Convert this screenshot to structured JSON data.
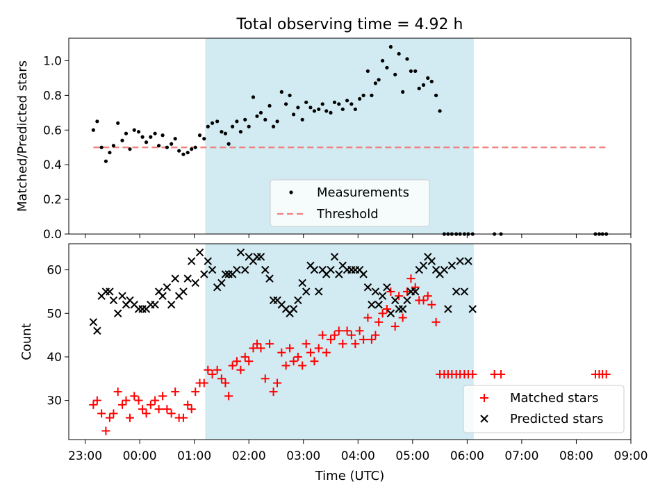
{
  "title": "Total observing time = 4.92 h",
  "colors": {
    "shade": "#add8e6",
    "threshold": "#f08080",
    "matched": "#ff0000",
    "predicted": "#000000",
    "measure": "#000000"
  },
  "chart_data": [
    {
      "type": "scatter",
      "ylabel": "Matched/Predicted stars",
      "xlim": [
        22.7,
        33.0
      ],
      "ylim": [
        0.0,
        1.13
      ],
      "yticks": [
        "0.0",
        "0.2",
        "0.4",
        "0.6",
        "0.8",
        "1.0"
      ],
      "ytick_values": [
        0.0,
        0.2,
        0.4,
        0.6,
        0.8,
        1.0
      ],
      "shaded_x_range": [
        25.2,
        30.12
      ],
      "legend": {
        "placement": "lower center",
        "entries": [
          "Measurements",
          "Threshold"
        ]
      },
      "series": [
        {
          "name": "Measurements",
          "marker": "dot",
          "x": [
            23.15,
            23.22,
            23.3,
            23.38,
            23.45,
            23.52,
            23.6,
            23.68,
            23.75,
            23.82,
            23.9,
            23.98,
            24.05,
            24.12,
            24.2,
            24.28,
            24.35,
            24.42,
            24.5,
            24.58,
            24.65,
            24.72,
            24.8,
            24.88,
            24.95,
            25.02,
            25.1,
            25.18,
            25.25,
            25.33,
            25.42,
            25.5,
            25.57,
            25.63,
            25.7,
            25.78,
            25.85,
            25.93,
            26.0,
            26.08,
            26.15,
            26.22,
            26.3,
            26.38,
            26.45,
            26.52,
            26.6,
            26.68,
            26.75,
            26.82,
            26.9,
            26.98,
            27.05,
            27.13,
            27.2,
            27.28,
            27.35,
            27.42,
            27.5,
            27.57,
            27.65,
            27.72,
            27.8,
            27.88,
            27.95,
            28.03,
            28.1,
            28.18,
            28.25,
            28.32,
            28.38,
            28.45,
            28.53,
            28.6,
            28.68,
            28.75,
            28.82,
            28.9,
            28.97,
            29.05,
            29.12,
            29.2,
            29.28,
            29.35,
            29.43,
            29.5,
            29.58,
            29.65,
            29.72,
            29.8,
            29.87,
            29.95,
            30.02,
            30.1,
            30.5,
            30.62,
            32.35,
            32.42,
            32.48,
            32.55
          ],
          "y": [
            0.6,
            0.65,
            0.5,
            0.42,
            0.47,
            0.51,
            0.64,
            0.54,
            0.58,
            0.49,
            0.6,
            0.59,
            0.56,
            0.53,
            0.56,
            0.58,
            0.51,
            0.57,
            0.5,
            0.52,
            0.55,
            0.48,
            0.46,
            0.47,
            0.49,
            0.5,
            0.57,
            0.55,
            0.62,
            0.64,
            0.65,
            0.59,
            0.58,
            0.52,
            0.62,
            0.65,
            0.59,
            0.66,
            0.62,
            0.79,
            0.68,
            0.7,
            0.66,
            0.74,
            0.62,
            0.65,
            0.82,
            0.75,
            0.8,
            0.69,
            0.73,
            0.66,
            0.76,
            0.73,
            0.71,
            0.72,
            0.75,
            0.71,
            0.7,
            0.76,
            0.75,
            0.72,
            0.77,
            0.75,
            0.72,
            0.78,
            0.8,
            0.94,
            0.8,
            0.87,
            0.89,
            1.0,
            0.96,
            1.08,
            0.92,
            1.04,
            0.82,
            1.01,
            0.94,
            0.94,
            0.84,
            0.86,
            0.9,
            0.88,
            0.8,
            0.71,
            0.0,
            0.0,
            0.0,
            0.0,
            0.0,
            0.0,
            0.0,
            0.0,
            0.0,
            0.0,
            0.0,
            0.0,
            0.0,
            0.0
          ]
        },
        {
          "name": "Threshold",
          "marker": "dashed-line",
          "x": [
            23.15,
            32.55
          ],
          "y": [
            0.5,
            0.5
          ]
        }
      ]
    },
    {
      "type": "scatter",
      "ylabel": "Count",
      "xlabel": "Time (UTC)",
      "xlim": [
        22.7,
        33.0
      ],
      "ylim": [
        21,
        66
      ],
      "yticks": [
        "30",
        "40",
        "50",
        "60"
      ],
      "ytick_values": [
        30,
        40,
        50,
        60
      ],
      "xticks": [
        "23:00",
        "00:00",
        "01:00",
        "02:00",
        "03:00",
        "04:00",
        "05:00",
        "06:00",
        "07:00",
        "08:00",
        "09:00"
      ],
      "xtick_values": [
        23,
        24,
        25,
        26,
        27,
        28,
        29,
        30,
        31,
        32,
        33
      ],
      "shaded_x_range": [
        25.2,
        30.12
      ],
      "legend": {
        "placement": "lower right",
        "entries": [
          "Matched stars",
          "Predicted stars"
        ]
      },
      "series": [
        {
          "name": "Matched stars",
          "marker": "plus",
          "x": [
            23.15,
            23.22,
            23.3,
            23.38,
            23.45,
            23.52,
            23.6,
            23.68,
            23.75,
            23.82,
            23.9,
            23.98,
            24.05,
            24.12,
            24.2,
            24.28,
            24.35,
            24.42,
            24.5,
            24.58,
            24.65,
            24.72,
            24.8,
            24.88,
            24.95,
            25.02,
            25.1,
            25.18,
            25.25,
            25.33,
            25.42,
            25.5,
            25.57,
            25.63,
            25.7,
            25.78,
            25.85,
            25.93,
            26.0,
            26.08,
            26.15,
            26.22,
            26.3,
            26.38,
            26.45,
            26.52,
            26.6,
            26.68,
            26.75,
            26.82,
            26.9,
            26.98,
            27.05,
            27.13,
            27.2,
            27.28,
            27.35,
            27.42,
            27.5,
            27.57,
            27.65,
            27.72,
            27.8,
            27.88,
            27.95,
            28.03,
            28.1,
            28.18,
            28.25,
            28.32,
            28.38,
            28.45,
            28.53,
            28.6,
            28.68,
            28.75,
            28.82,
            28.9,
            28.97,
            29.05,
            29.12,
            29.2,
            29.28,
            29.35,
            29.43,
            29.5,
            29.58,
            29.65,
            29.72,
            29.8,
            29.87,
            29.95,
            30.02,
            30.1,
            30.5,
            30.62,
            32.35,
            32.42,
            32.48,
            32.55
          ],
          "y": [
            29,
            30,
            27,
            23,
            26,
            27,
            32,
            29,
            30,
            26,
            31,
            30,
            28,
            27,
            29,
            30,
            28,
            31,
            28,
            27,
            32,
            26,
            26,
            29,
            28,
            32,
            34,
            34,
            37,
            36,
            37,
            35,
            34,
            31,
            38,
            39,
            37,
            40,
            39,
            42,
            43,
            42,
            35,
            43,
            32,
            34,
            41,
            38,
            42,
            39,
            40,
            38,
            43,
            41,
            39,
            42,
            45,
            41,
            44,
            45,
            46,
            43,
            46,
            45,
            43,
            46,
            44,
            49,
            44,
            45,
            48,
            50,
            51,
            55,
            47,
            54,
            49,
            55,
            58,
            56,
            53,
            53,
            54,
            52,
            48,
            36,
            36,
            36,
            36,
            36,
            36,
            36,
            36,
            36,
            36,
            36,
            36,
            36,
            36,
            36
          ]
        },
        {
          "name": "Predicted stars",
          "marker": "x",
          "x": [
            23.15,
            23.22,
            23.3,
            23.38,
            23.45,
            23.52,
            23.6,
            23.68,
            23.75,
            23.82,
            23.9,
            23.98,
            24.05,
            24.12,
            24.2,
            24.28,
            24.35,
            24.42,
            24.5,
            24.58,
            24.65,
            24.72,
            24.8,
            24.88,
            24.95,
            25.02,
            25.1,
            25.18,
            25.25,
            25.33,
            25.42,
            25.5,
            25.57,
            25.63,
            25.7,
            25.78,
            25.85,
            25.93,
            26.0,
            26.08,
            26.15,
            26.22,
            26.3,
            26.38,
            26.45,
            26.52,
            26.6,
            26.68,
            26.75,
            26.82,
            26.9,
            26.98,
            27.05,
            27.13,
            27.2,
            27.28,
            27.35,
            27.42,
            27.5,
            27.57,
            27.65,
            27.72,
            27.8,
            27.88,
            27.95,
            28.03,
            28.1,
            28.18,
            28.25,
            28.32,
            28.38,
            28.45,
            28.53,
            28.6,
            28.68,
            28.75,
            28.82,
            28.9,
            28.97,
            29.05,
            29.12,
            29.2,
            29.28,
            29.35,
            29.43,
            29.5,
            29.58,
            29.65,
            29.72,
            29.8,
            29.87,
            29.95,
            30.02,
            30.1
          ],
          "y": [
            48,
            46,
            54,
            55,
            55,
            53,
            50,
            54,
            52,
            53,
            52,
            51,
            51,
            51,
            52,
            52,
            55,
            54,
            56,
            52,
            58,
            54,
            55,
            58,
            62,
            57,
            64,
            59,
            62,
            60,
            56,
            57,
            59,
            59,
            59,
            60,
            64,
            60,
            63,
            62,
            63,
            63,
            60,
            58,
            53,
            53,
            52,
            51,
            50,
            51,
            53,
            57,
            55,
            61,
            60,
            55,
            60,
            59,
            60,
            63,
            59,
            61,
            60,
            60,
            60,
            60,
            59,
            56,
            52,
            55,
            52,
            54,
            56,
            50,
            53,
            51,
            51,
            53,
            55,
            55,
            60,
            61,
            63,
            62,
            60,
            59,
            60,
            51,
            61,
            55,
            62,
            55,
            62,
            51
          ]
        }
      ]
    }
  ]
}
